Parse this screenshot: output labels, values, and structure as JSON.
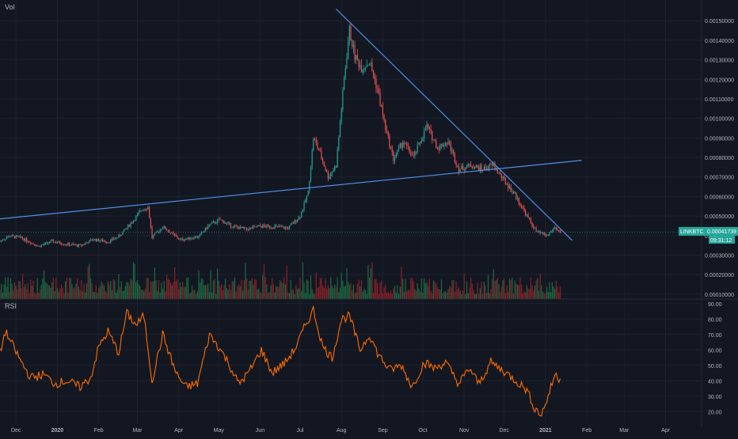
{
  "chart_data": [
    {
      "type": "candlestick",
      "panel": "price",
      "title": "",
      "indicator_label": "Vol",
      "symbol_badge": "LINKBTC",
      "last_price": "0.00041739",
      "countdown": "09:31:12",
      "y_ticks": [
        "0.00150000",
        "0.00140000",
        "0.00130000",
        "0.00120000",
        "0.00110000",
        "0.00100000",
        "0.00090000",
        "0.00080000",
        "0.00070000",
        "0.00060000",
        "0.00050000",
        "0.00040000",
        "0.00030000",
        "0.00020000",
        "0.00010000"
      ],
      "x_ticks": [
        "Dec",
        "2020",
        "Feb",
        "Mar",
        "Apr",
        "May",
        "Jun",
        "Jul",
        "Aug",
        "Sep",
        "Oct",
        "Nov",
        "Dec",
        "2021",
        "Feb",
        "Mar",
        "Apr"
      ],
      "x_range": [
        "2019-11-19",
        "2021-04-28"
      ],
      "y_range": [
        7.5e-05,
        0.00159
      ],
      "close_keypoints": [
        [
          "2019-11-19",
          0.000372
        ],
        [
          "2019-11-26",
          0.000398
        ],
        [
          "2019-12-05",
          0.000388
        ],
        [
          "2019-12-18",
          0.000345
        ],
        [
          "2019-12-28",
          0.00037
        ],
        [
          "2020-01-08",
          0.000355
        ],
        [
          "2020-01-18",
          0.000348
        ],
        [
          "2020-01-28",
          0.00038
        ],
        [
          "2020-02-08",
          0.000368
        ],
        [
          "2020-02-16",
          0.000395
        ],
        [
          "2020-02-26",
          0.00047
        ],
        [
          "2020-03-05",
          0.000538
        ],
        [
          "2020-03-09",
          0.000545
        ],
        [
          "2020-03-12",
          0.00039
        ],
        [
          "2020-03-20",
          0.000445
        ],
        [
          "2020-04-02",
          0.000378
        ],
        [
          "2020-04-16",
          0.000395
        ],
        [
          "2020-04-24",
          0.000455
        ],
        [
          "2020-05-02",
          0.00048
        ],
        [
          "2020-05-12",
          0.000445
        ],
        [
          "2020-05-22",
          0.000432
        ],
        [
          "2020-06-01",
          0.000448
        ],
        [
          "2020-06-12",
          0.000445
        ],
        [
          "2020-06-22",
          0.000438
        ],
        [
          "2020-07-01",
          0.0005
        ],
        [
          "2020-07-07",
          0.00062
        ],
        [
          "2020-07-11",
          0.0009
        ],
        [
          "2020-07-16",
          0.00082
        ],
        [
          "2020-07-22",
          0.0007
        ],
        [
          "2020-07-28",
          0.00076
        ],
        [
          "2020-08-03",
          0.0012
        ],
        [
          "2020-08-07",
          0.00145
        ],
        [
          "2020-08-11",
          0.00132
        ],
        [
          "2020-08-16",
          0.00126
        ],
        [
          "2020-08-22",
          0.00129
        ],
        [
          "2020-08-28",
          0.00115
        ],
        [
          "2020-09-03",
          0.00095
        ],
        [
          "2020-09-09",
          0.00079
        ],
        [
          "2020-09-16",
          0.00088
        ],
        [
          "2020-09-24",
          0.0008
        ],
        [
          "2020-10-04",
          0.00096
        ],
        [
          "2020-10-12",
          0.00085
        ],
        [
          "2020-10-20",
          0.00088
        ],
        [
          "2020-10-28",
          0.00074
        ],
        [
          "2020-11-06",
          0.00076
        ],
        [
          "2020-11-14",
          0.00074
        ],
        [
          "2020-11-23",
          0.00076
        ],
        [
          "2020-12-01",
          0.00068
        ],
        [
          "2020-12-09",
          0.00061
        ],
        [
          "2020-12-18",
          0.0005
        ],
        [
          "2020-12-25",
          0.00042
        ],
        [
          "2021-01-02",
          0.0004
        ],
        [
          "2021-01-08",
          0.00044
        ],
        [
          "2021-01-12",
          0.000417
        ]
      ],
      "trendlines": [
        {
          "name": "rising-support",
          "from": [
            "2019-11-19",
            0.000485
          ],
          "to": [
            "2021-01-28",
            0.000785
          ]
        },
        {
          "name": "falling-resistance",
          "from": [
            "2020-07-28",
            0.00156
          ],
          "to": [
            "2021-01-21",
            0.000375
          ]
        }
      ],
      "colors": {
        "up": "#26a69a",
        "down": "#ef5350",
        "trendline": "#4f8fe6",
        "vol_up": "#1f7a4a",
        "vol_down": "#a2242a",
        "badge": "#26a69a"
      }
    },
    {
      "type": "line",
      "panel": "rsi",
      "indicator_label": "RSI",
      "y_ticks": [
        "90.00",
        "80.00",
        "70.00",
        "60.00",
        "50.00",
        "40.00",
        "30.00",
        "20.00"
      ],
      "y_range": [
        12,
        92
      ],
      "keypoints": [
        [
          "2019-11-19",
          58
        ],
        [
          "2019-11-23",
          72
        ],
        [
          "2019-12-05",
          52
        ],
        [
          "2019-12-12",
          42
        ],
        [
          "2019-12-22",
          44
        ],
        [
          "2019-12-30",
          38
        ],
        [
          "2020-01-08",
          40
        ],
        [
          "2020-01-18",
          36
        ],
        [
          "2020-01-26",
          42
        ],
        [
          "2020-02-01",
          62
        ],
        [
          "2020-02-08",
          72
        ],
        [
          "2020-02-16",
          58
        ],
        [
          "2020-02-22",
          84
        ],
        [
          "2020-02-29",
          76
        ],
        [
          "2020-03-06",
          82
        ],
        [
          "2020-03-12",
          40
        ],
        [
          "2020-03-20",
          70
        ],
        [
          "2020-03-30",
          45
        ],
        [
          "2020-04-06",
          36
        ],
        [
          "2020-04-15",
          38
        ],
        [
          "2020-04-24",
          70
        ],
        [
          "2020-05-01",
          62
        ],
        [
          "2020-05-08",
          52
        ],
        [
          "2020-05-16",
          38
        ],
        [
          "2020-05-24",
          46
        ],
        [
          "2020-06-02",
          60
        ],
        [
          "2020-06-10",
          45
        ],
        [
          "2020-06-20",
          52
        ],
        [
          "2020-06-28",
          62
        ],
        [
          "2020-07-05",
          76
        ],
        [
          "2020-07-11",
          86
        ],
        [
          "2020-07-18",
          62
        ],
        [
          "2020-07-25",
          55
        ],
        [
          "2020-08-01",
          80
        ],
        [
          "2020-08-07",
          82
        ],
        [
          "2020-08-15",
          60
        ],
        [
          "2020-08-22",
          70
        ],
        [
          "2020-08-28",
          58
        ],
        [
          "2020-09-06",
          47
        ],
        [
          "2020-09-15",
          50
        ],
        [
          "2020-09-23",
          36
        ],
        [
          "2020-10-02",
          52
        ],
        [
          "2020-10-10",
          48
        ],
        [
          "2020-10-18",
          52
        ],
        [
          "2020-10-28",
          38
        ],
        [
          "2020-11-05",
          48
        ],
        [
          "2020-11-12",
          38
        ],
        [
          "2020-11-21",
          52
        ],
        [
          "2020-12-01",
          46
        ],
        [
          "2020-12-10",
          40
        ],
        [
          "2020-12-18",
          34
        ],
        [
          "2020-12-24",
          22
        ],
        [
          "2020-12-29",
          18
        ],
        [
          "2021-01-03",
          30
        ],
        [
          "2021-01-08",
          44
        ],
        [
          "2021-01-12",
          41
        ]
      ],
      "color": "#ff6d00"
    }
  ]
}
